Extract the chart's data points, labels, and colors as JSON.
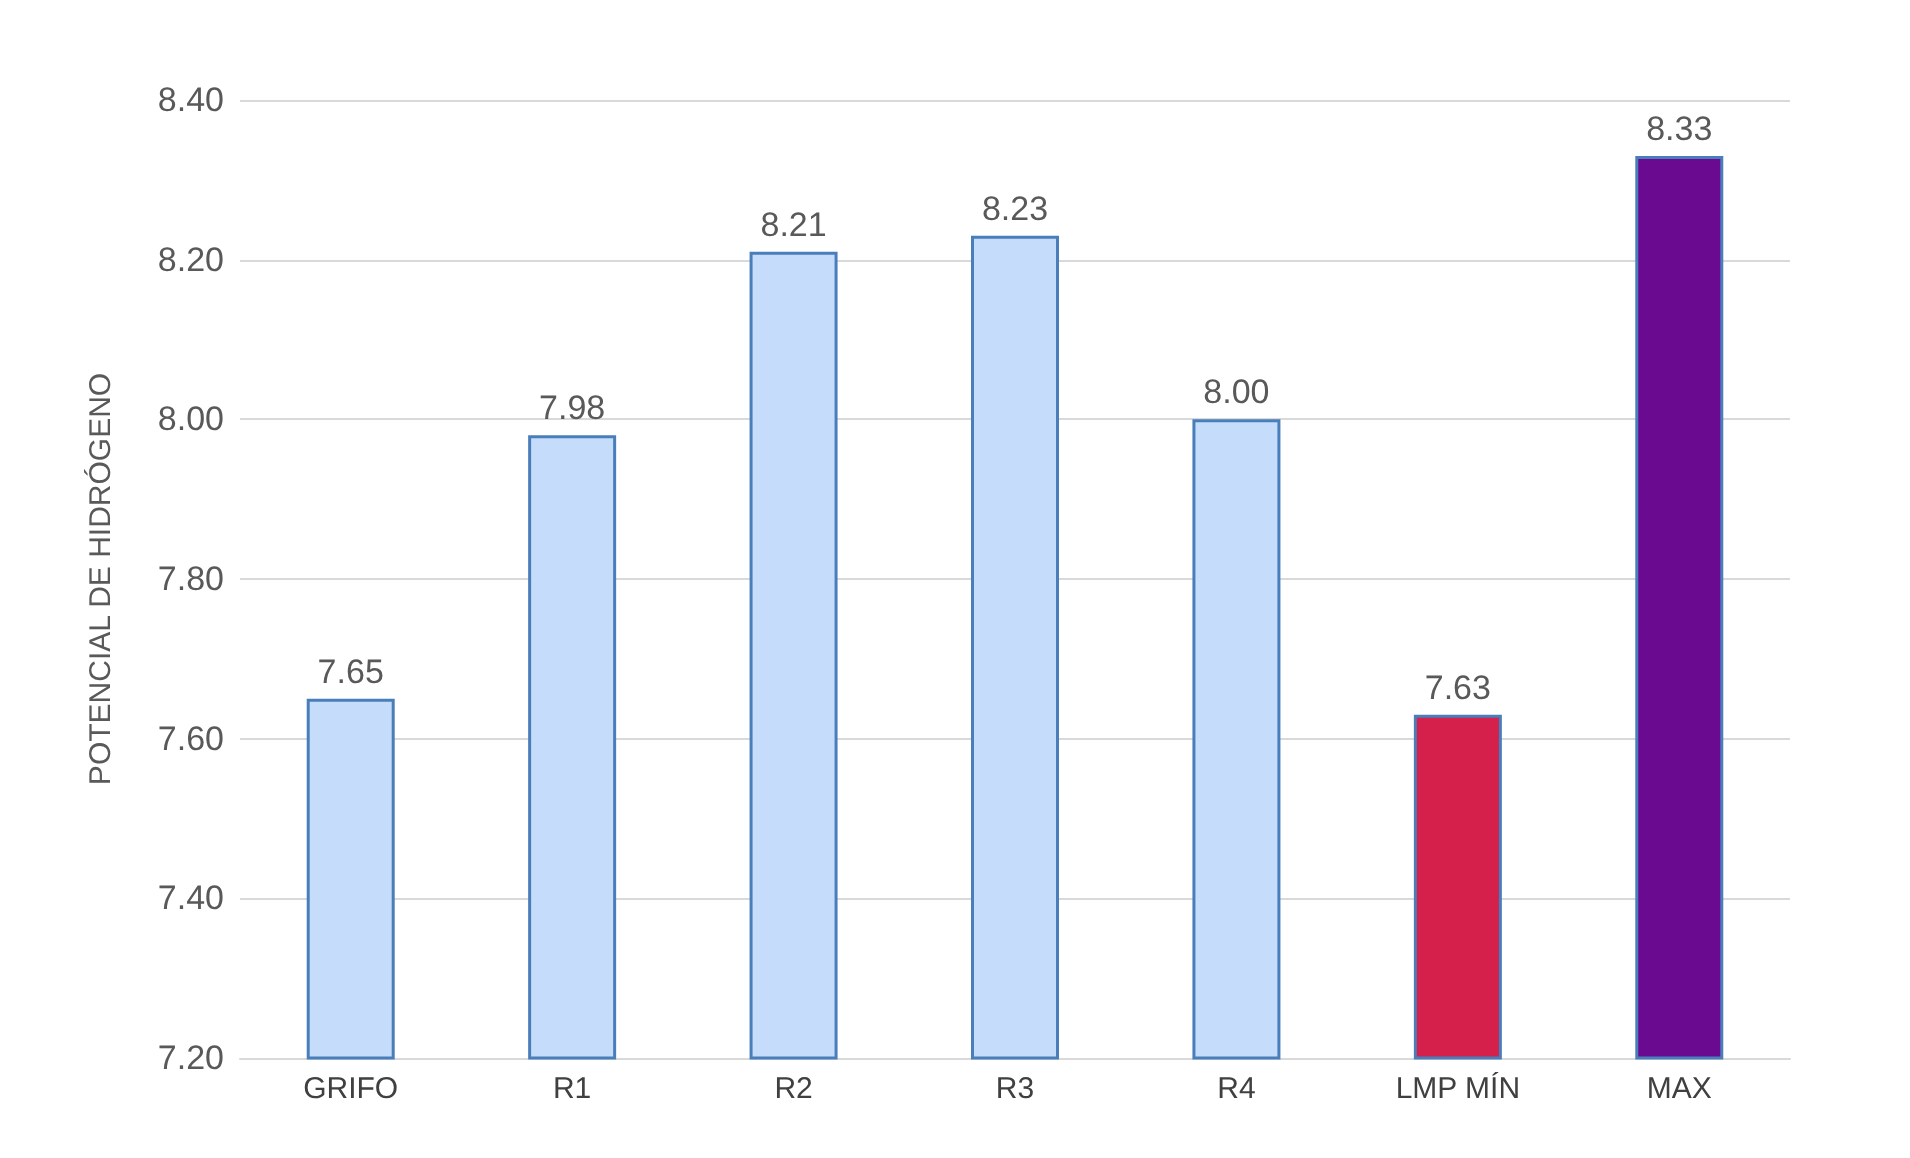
{
  "chart_data": {
    "type": "bar",
    "ylabel": "POTENCIAL DE HIDRÓGENO",
    "categories": [
      "GRIFO",
      "R1",
      "R2",
      "R3",
      "R4",
      "LMP MÍN",
      "MAX"
    ],
    "values": [
      7.65,
      7.98,
      8.21,
      8.23,
      8.0,
      7.63,
      8.33
    ],
    "value_labels": [
      "7.65",
      "7.98",
      "8.21",
      "8.23",
      "8.00",
      "7.63",
      "8.33"
    ],
    "colors": [
      "#c6dcfb",
      "#c6dcfb",
      "#c6dcfb",
      "#c6dcfb",
      "#c6dcfb",
      "#d4204a",
      "#6a0a90"
    ],
    "ylim": [
      7.2,
      8.4
    ],
    "yticks": [
      {
        "value": 7.2,
        "label": "7.20"
      },
      {
        "value": 7.4,
        "label": "7.40"
      },
      {
        "value": 7.6,
        "label": "7.60"
      },
      {
        "value": 7.8,
        "label": "7.80"
      },
      {
        "value": 8.0,
        "label": "8.00"
      },
      {
        "value": 8.2,
        "label": "8.20"
      },
      {
        "value": 8.4,
        "label": "8.40"
      }
    ],
    "grid": "y"
  }
}
